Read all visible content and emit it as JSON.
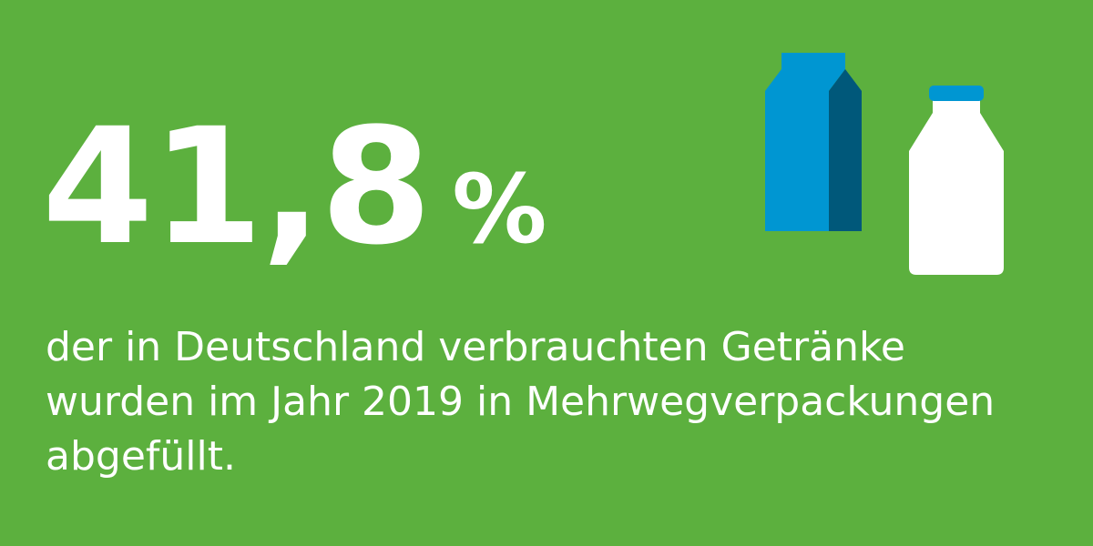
{
  "stat": {
    "value": "41,8",
    "unit": "%"
  },
  "caption": {
    "lines": [
      "der in Deutschland verbrauchten Getränke",
      "wurden im Jahr 2019 in Mehrwegverpackungen",
      "abgefüllt."
    ]
  },
  "icons": {
    "carton": "drink-carton-icon",
    "bottle": "milk-bottle-icon"
  },
  "colors": {
    "background": "#5cb03e",
    "text": "#ffffff",
    "carton_front": "#0096d2",
    "carton_side": "#00587a",
    "bottle": "#ffffff",
    "bottle_cap": "#0096d2"
  }
}
